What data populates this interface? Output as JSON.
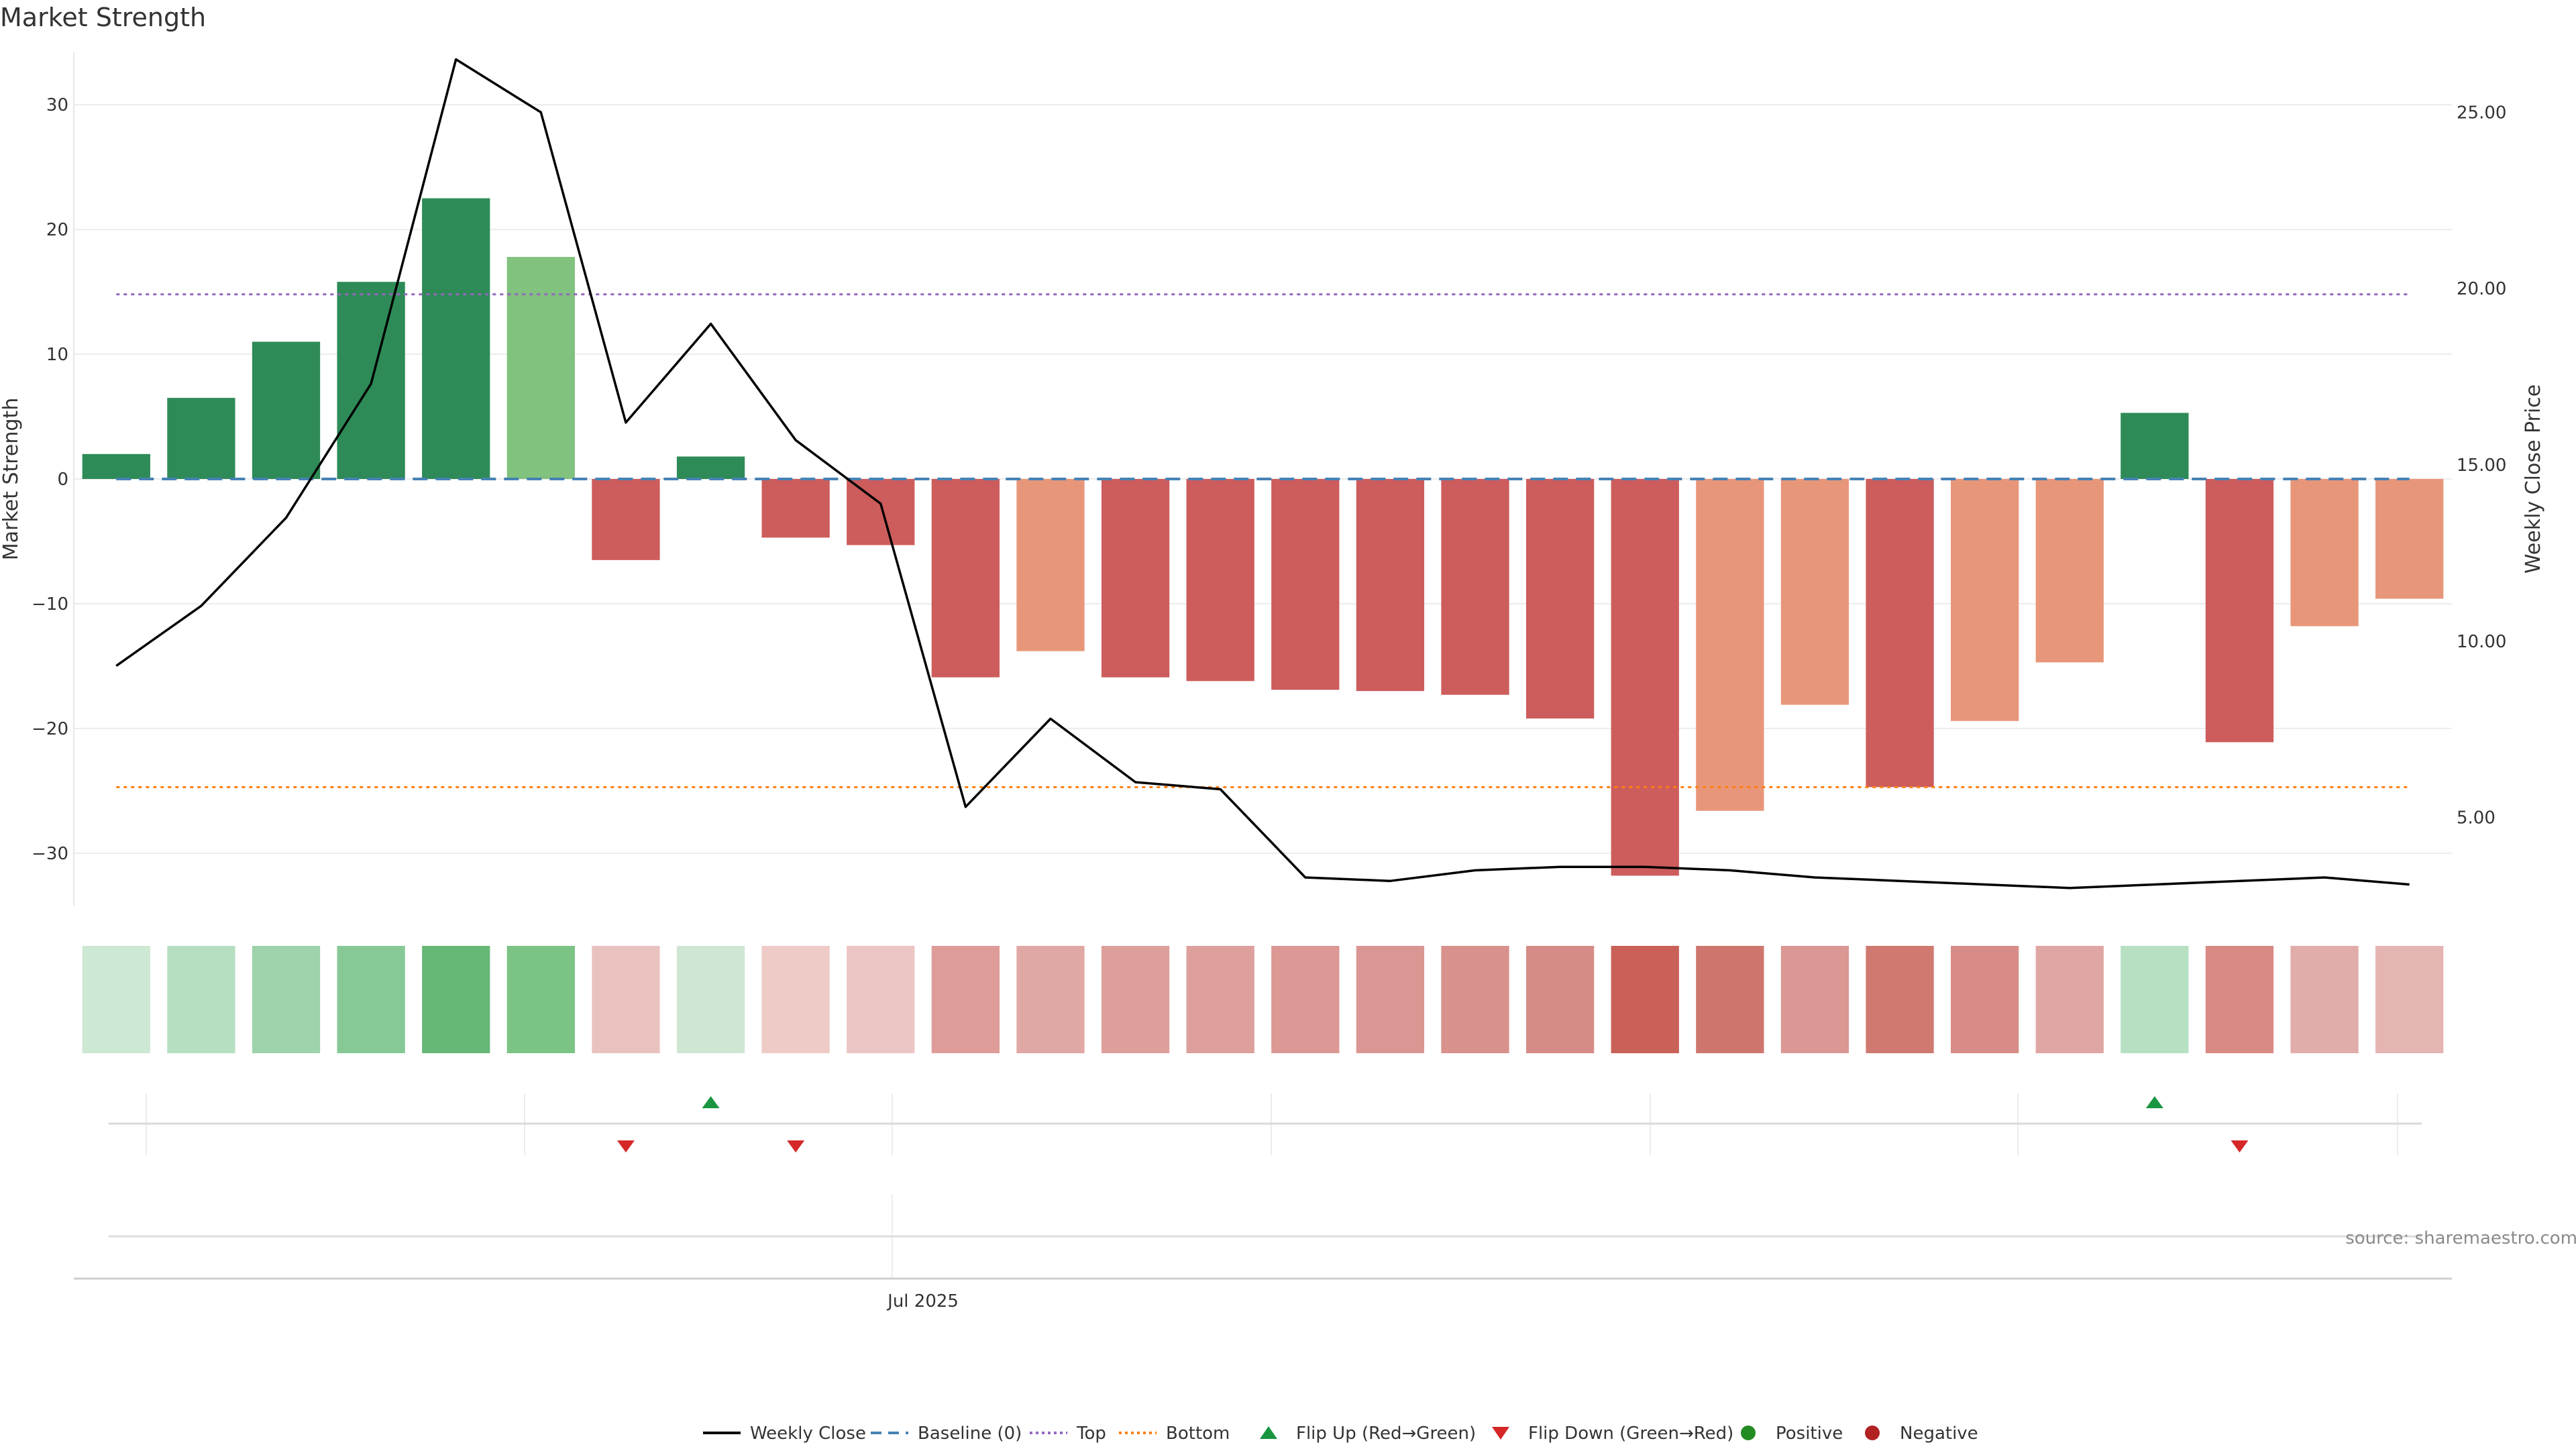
{
  "chart_data": {
    "title": "Market Strength",
    "type": "bar",
    "ylabel_left": "Market Strength",
    "ylabel_right": "Weekly Close Price",
    "y_left_ticks": [
      30,
      20,
      10,
      0,
      -10,
      -20,
      -30
    ],
    "y_left_tick_labels": [
      "30",
      "20",
      "10",
      "0",
      "−10",
      "−20",
      "−30"
    ],
    "ylim_left": [
      -34.2,
      34.2
    ],
    "y_right_ticks": [
      25,
      20,
      15,
      10,
      5
    ],
    "y_right_tick_labels": [
      "25.00",
      "20.00",
      "15.00",
      "10.00",
      "5.00"
    ],
    "ylim_right": [
      2.5,
      26.7
    ],
    "x_tick_label": "Jul 2025",
    "x_tick_index": 9.5,
    "strength": [
      2.0,
      6.5,
      11.0,
      15.8,
      22.5,
      17.8,
      -6.5,
      1.8,
      -4.7,
      -5.3,
      -15.9,
      -13.8,
      -15.9,
      -16.2,
      -16.9,
      -17.0,
      -17.3,
      -19.2,
      -31.8,
      -26.6,
      -18.1,
      -24.7,
      -19.4,
      -14.7,
      5.3,
      -21.1,
      -11.8,
      -9.6
    ],
    "bar_style": [
      "pos",
      "pos",
      "pos",
      "pos",
      "pos",
      "pos-light",
      "neg",
      "pos",
      "neg",
      "neg",
      "neg",
      "neg-light",
      "neg",
      "neg",
      "neg",
      "neg",
      "neg",
      "neg",
      "neg",
      "neg-light",
      "neg-light",
      "neg",
      "neg-light",
      "neg-light",
      "pos",
      "neg",
      "neg-light",
      "neg-light"
    ],
    "weekly_close": [
      9.3,
      11.0,
      13.5,
      17.3,
      26.5,
      25.0,
      16.2,
      19.0,
      15.7,
      13.9,
      5.3,
      7.8,
      6.0,
      5.8,
      3.3,
      3.2,
      3.5,
      3.6,
      3.6,
      3.5,
      3.3,
      3.2,
      3.1,
      3.0,
      3.1,
      3.2,
      3.3,
      3.1
    ],
    "top_line": 14.8,
    "bottom_line": -24.7,
    "heat_colors": [
      "#cde8d3",
      "#b6dfc1",
      "#9ed2aa",
      "#86c996",
      "#66b877",
      "#7cc386",
      "#e9c2bf",
      "#cfe6d3",
      "#efcbc8",
      "#ecc6c4",
      "#de9c98",
      "#e0a8a4",
      "#dd9f9a",
      "#dea09c",
      "#db9894",
      "#da9692",
      "#d8918c",
      "#d68c86",
      "#c96158",
      "#ce766e",
      "#da9793",
      "#d07970",
      "#d78c87",
      "#e0a6a3",
      "#b7e0c3",
      "#d98984",
      "#e1adab",
      "#e5b5b3"
    ],
    "flip_up_indices": [
      7,
      24
    ],
    "flip_down_indices": [
      6,
      8,
      25
    ],
    "source_text": "source: sharemaestro.com",
    "legend": [
      "Weekly Close",
      "Baseline (0)",
      "Top",
      "Bottom",
      "Flip Up (Red→Green)",
      "Flip Down (Green→Red)",
      "Positive",
      "Negative"
    ],
    "colors": {
      "pos": "#2e8b57",
      "pos-light": "#80c27e",
      "neg": "#cd5c5c",
      "neg-light": "#e8967a",
      "line": "#000000",
      "baseline": "#4682b4",
      "top": "#9467bd",
      "bottom": "#ff7f0e",
      "flip_up": "#1a9641",
      "flip_down": "#d62728",
      "positive_dot": "#228b22",
      "negative_dot": "#b22222"
    }
  }
}
